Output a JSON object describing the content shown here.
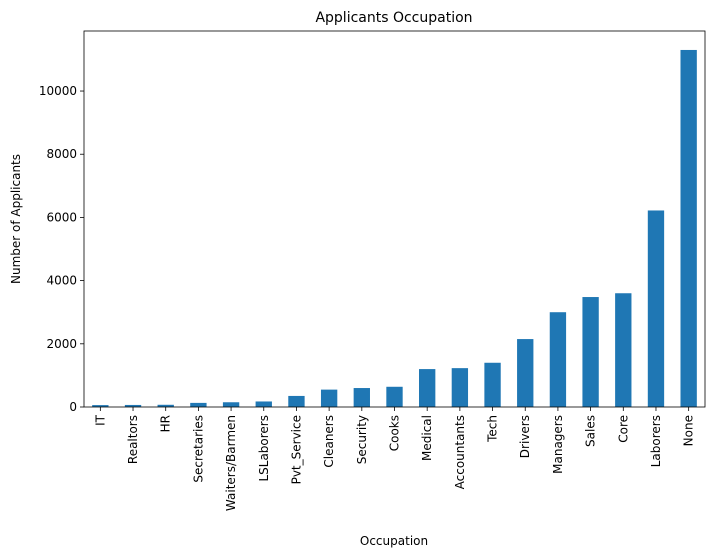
{
  "chart_data": {
    "type": "bar",
    "title": "Applicants Occupation",
    "xlabel": "Occupation",
    "ylabel": "Number of Applicants",
    "categories": [
      "IT",
      "Realtors",
      "HR",
      "Secretaries",
      "Waiters/Barmen",
      "LSLaborers",
      "Pvt_Service",
      "Cleaners",
      "Security",
      "Cooks",
      "Medical",
      "Accountants",
      "Tech",
      "Drivers",
      "Managers",
      "Sales",
      "Core",
      "Laborers",
      "None"
    ],
    "values": [
      60,
      65,
      70,
      130,
      150,
      175,
      350,
      550,
      600,
      640,
      1200,
      1230,
      1400,
      2150,
      3000,
      3480,
      3600,
      6220,
      11300
    ],
    "ylim": [
      0,
      11900
    ],
    "yticks": [
      0,
      2000,
      4000,
      6000,
      8000,
      10000
    ],
    "legend": "none",
    "grid": false,
    "colors": {
      "bar": "#1f77b4"
    }
  }
}
